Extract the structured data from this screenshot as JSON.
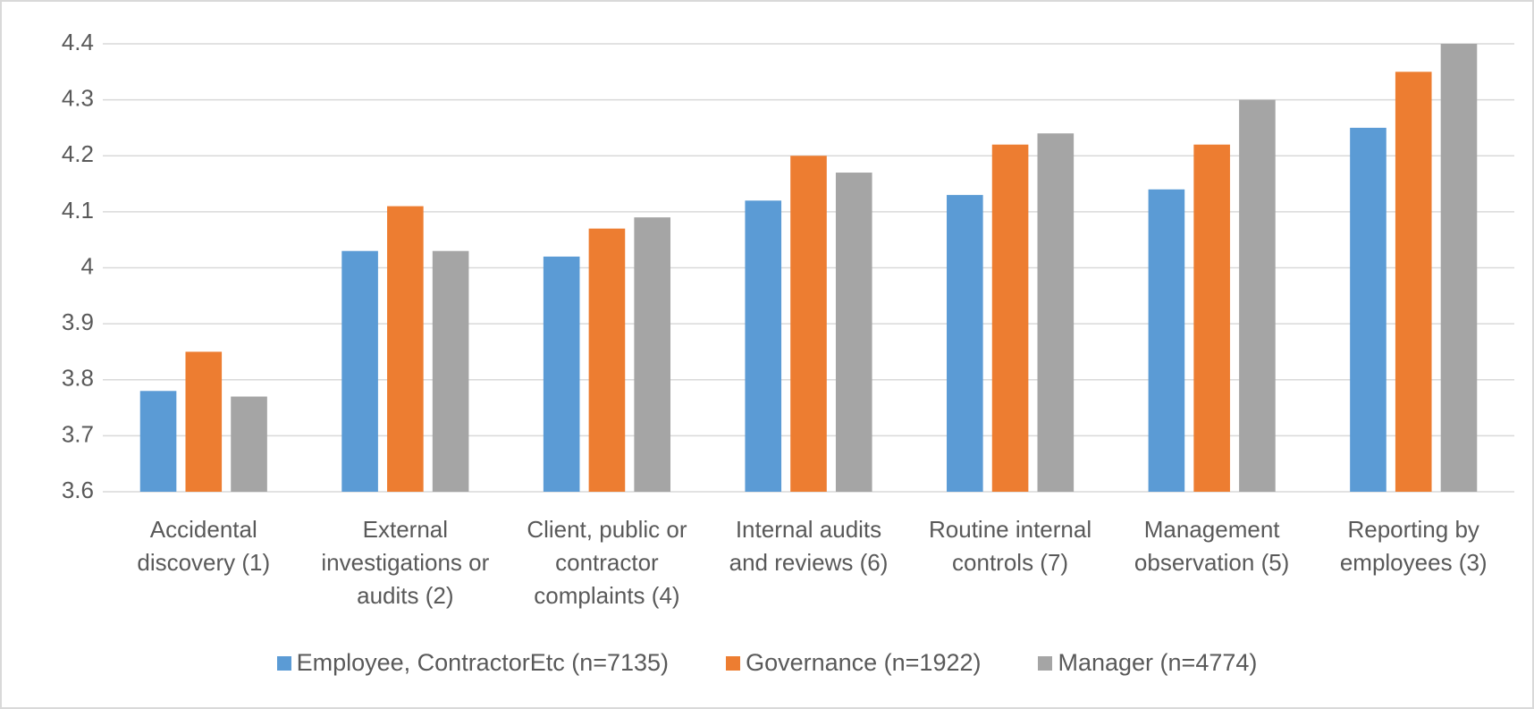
{
  "chart_data": {
    "type": "bar",
    "categories": [
      "Accidental discovery (1)",
      "External investigations or audits (2)",
      "Client, public or contractor complaints (4)",
      "Internal audits and reviews (6)",
      "Routine internal controls (7)",
      "Management observation (5)",
      "Reporting by employees (3)"
    ],
    "series": [
      {
        "name": "Employee, ContractorEtc (n=7135)",
        "color": "#5b9bd5",
        "values": [
          3.78,
          4.03,
          4.02,
          4.12,
          4.13,
          4.14,
          4.25
        ]
      },
      {
        "name": "Governance (n=1922)",
        "color": "#ed7d31",
        "values": [
          3.85,
          4.11,
          4.07,
          4.2,
          4.22,
          4.22,
          4.35
        ]
      },
      {
        "name": "Manager (n=4774)",
        "color": "#a5a5a5",
        "values": [
          3.77,
          4.03,
          4.09,
          4.17,
          4.24,
          4.3,
          4.4
        ]
      }
    ],
    "ylim": [
      3.6,
      4.4
    ],
    "yticks": [
      3.6,
      3.7,
      3.8,
      3.9,
      4,
      4.1,
      4.2,
      4.3,
      4.4
    ],
    "grid": true,
    "legend": "bottom"
  }
}
